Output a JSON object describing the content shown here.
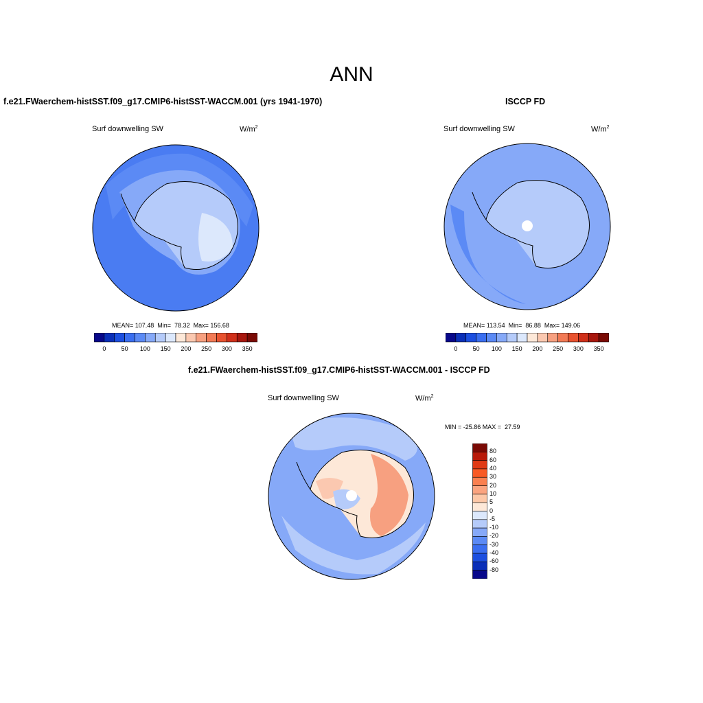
{
  "main_title": "ANN",
  "panels": [
    {
      "title": "f.e21.FWaerchem-histSST.f09_g17.CMIP6-histSST-WACCM.001 (yrs 1941-1970)",
      "variable": "Surf downwelling SW",
      "units_base": "W/m",
      "units_exp": "2",
      "stats": "MEAN= 107.48  Min=  78.32  Max= 156.68"
    },
    {
      "title": "ISCCP FD",
      "variable": "Surf downwelling SW",
      "units_base": "W/m",
      "units_exp": "2",
      "stats": "MEAN= 113.54  Min=  86.88  Max= 149.06"
    },
    {
      "title": "f.e21.FWaerchem-histSST.f09_g17.CMIP6-histSST-WACCM.001 - ISCCP FD",
      "variable": "Surf downwelling SW",
      "units_base": "W/m",
      "units_exp": "2",
      "stats": "MIN = -25.86 MAX =  27.59"
    }
  ],
  "colorbar_top": {
    "colors": [
      "#08088a",
      "#0a2fb8",
      "#1c4fe0",
      "#3a6ef0",
      "#5b8af5",
      "#86a9f8",
      "#b5cbfa",
      "#dce8fc",
      "#fde8d8",
      "#fbc8b0",
      "#f7a080",
      "#f27a55",
      "#e8522f",
      "#d0301a",
      "#a8170e",
      "#7a0a05"
    ],
    "labels": [
      "0",
      "50",
      "100",
      "150",
      "200",
      "250",
      "300",
      "350"
    ]
  },
  "colorbar_diff": {
    "colors": [
      "#7a0a05",
      "#b81a0a",
      "#e03a15",
      "#f85a25",
      "#fa8050",
      "#fba480",
      "#fdc8a8",
      "#fde8d8",
      "#dce8fc",
      "#b5cbfa",
      "#86a9f8",
      "#5b8af5",
      "#3a6ef0",
      "#1c4fe0",
      "#0a2fb8",
      "#08088a"
    ],
    "labels": [
      "80",
      "60",
      "40",
      "30",
      "20",
      "10",
      "5",
      "0",
      "-5",
      "-10",
      "-20",
      "-30",
      "-40",
      "-60",
      "-80"
    ]
  },
  "map_colors": {
    "ocean_mid": "#4a7cf2",
    "ocean_light": "#5b8af5",
    "ocean_pale": "#86a9f8",
    "land_light": "#b5cbfa",
    "land_pale": "#dce8fc",
    "diff_warm1": "#fde8d8",
    "diff_warm2": "#fbc8b0",
    "diff_warm3": "#f7a080",
    "diff_cool1": "#b5cbfa",
    "diff_cool2": "#86a9f8"
  }
}
